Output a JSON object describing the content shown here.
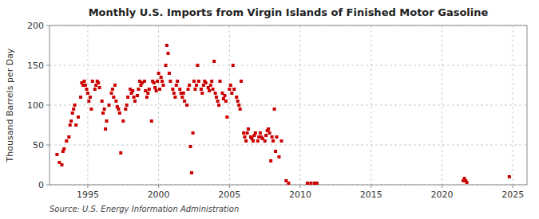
{
  "chart_data": {
    "type": "scatter",
    "title": "Monthly U.S. Imports from Virgin Islands of Finished Motor Gasoline",
    "ylabel": "Thousand Barrels per Day",
    "annotations": [
      "Source: U.S. Energy Information Administration"
    ],
    "xlim": [
      1992.3,
      2026.0
    ],
    "ylim": [
      0,
      200
    ],
    "xticks": [
      1995,
      2000,
      2005,
      2010,
      2015,
      2020,
      2025
    ],
    "yticks": [
      0,
      50,
      100,
      150,
      200
    ],
    "grid": true,
    "color": "#cc0000",
    "marker": "square",
    "x": [
      1992.83,
      1993.0,
      1993.17,
      1993.25,
      1993.33,
      1993.5,
      1993.67,
      1993.75,
      1993.83,
      1993.92,
      1994.0,
      1994.08,
      1994.17,
      1994.33,
      1994.5,
      1994.58,
      1994.67,
      1994.75,
      1994.83,
      1994.92,
      1995.0,
      1995.08,
      1995.17,
      1995.25,
      1995.33,
      1995.5,
      1995.58,
      1995.67,
      1995.75,
      1995.83,
      1996.0,
      1996.08,
      1996.17,
      1996.25,
      1996.33,
      1996.5,
      1996.67,
      1996.75,
      1996.83,
      1996.92,
      1997.0,
      1997.08,
      1997.17,
      1997.25,
      1997.33,
      1997.5,
      1997.67,
      1997.75,
      1997.83,
      1998.0,
      1998.08,
      1998.17,
      1998.25,
      1998.33,
      1998.5,
      1998.58,
      1998.67,
      1998.75,
      1998.83,
      1999.0,
      1999.08,
      1999.17,
      1999.25,
      1999.33,
      1999.5,
      1999.58,
      1999.67,
      1999.75,
      1999.83,
      1999.92,
      2000.0,
      2000.08,
      2000.17,
      2000.25,
      2000.33,
      2000.5,
      2000.58,
      2000.67,
      2000.75,
      2000.83,
      2001.0,
      2001.08,
      2001.17,
      2001.25,
      2001.33,
      2001.5,
      2001.58,
      2001.67,
      2001.75,
      2001.83,
      2002.0,
      2002.08,
      2002.17,
      2002.25,
      2002.33,
      2002.42,
      2002.5,
      2002.58,
      2002.67,
      2002.75,
      2002.83,
      2003.0,
      2003.08,
      2003.17,
      2003.25,
      2003.33,
      2003.5,
      2003.58,
      2003.67,
      2003.75,
      2003.83,
      2003.92,
      2004.0,
      2004.08,
      2004.17,
      2004.25,
      2004.33,
      2004.5,
      2004.58,
      2004.67,
      2004.75,
      2004.83,
      2005.0,
      2005.08,
      2005.17,
      2005.25,
      2005.33,
      2005.5,
      2005.58,
      2005.67,
      2005.75,
      2005.83,
      2006.0,
      2006.08,
      2006.17,
      2006.25,
      2006.33,
      2006.5,
      2006.58,
      2006.67,
      2006.75,
      2006.83,
      2007.0,
      2007.08,
      2007.17,
      2007.25,
      2007.33,
      2007.5,
      2007.58,
      2007.67,
      2007.75,
      2007.83,
      2007.92,
      2008.0,
      2008.08,
      2008.17,
      2008.25,
      2008.33,
      2008.5,
      2008.67,
      2009.0,
      2009.17,
      2010.5,
      2010.75,
      2011.0,
      2011.17,
      2021.5,
      2021.58,
      2021.67,
      2021.75,
      2024.75
    ],
    "values": [
      38,
      28,
      25,
      42,
      45,
      55,
      60,
      75,
      80,
      90,
      95,
      100,
      75,
      85,
      110,
      128,
      125,
      130,
      125,
      120,
      115,
      105,
      110,
      95,
      130,
      120,
      125,
      130,
      128,
      122,
      105,
      90,
      95,
      70,
      80,
      100,
      115,
      120,
      110,
      125,
      105,
      98,
      95,
      90,
      40,
      80,
      95,
      100,
      110,
      120,
      115,
      118,
      110,
      105,
      112,
      120,
      130,
      125,
      128,
      130,
      118,
      110,
      115,
      120,
      80,
      130,
      128,
      122,
      118,
      130,
      140,
      120,
      135,
      130,
      125,
      150,
      175,
      165,
      140,
      130,
      120,
      115,
      110,
      125,
      130,
      120,
      115,
      110,
      115,
      105,
      100,
      120,
      125,
      48,
      15,
      65,
      130,
      120,
      125,
      150,
      130,
      120,
      115,
      125,
      130,
      128,
      122,
      118,
      125,
      130,
      120,
      155,
      115,
      110,
      105,
      100,
      130,
      115,
      108,
      112,
      105,
      85,
      120,
      125,
      115,
      150,
      120,
      110,
      105,
      100,
      95,
      130,
      65,
      60,
      55,
      65,
      70,
      60,
      58,
      55,
      62,
      65,
      55,
      60,
      65,
      60,
      58,
      55,
      62,
      68,
      70,
      65,
      30,
      60,
      55,
      95,
      42,
      60,
      35,
      55,
      5,
      2,
      2,
      2,
      2,
      2,
      5,
      8,
      5,
      3,
      10
    ]
  }
}
